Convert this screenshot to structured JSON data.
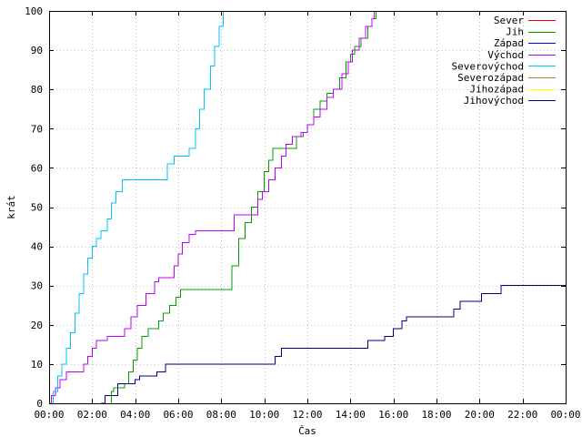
{
  "chart_data": {
    "type": "line",
    "title": "",
    "xlabel": "Čas",
    "ylabel": "krát",
    "xlim": [
      0,
      24
    ],
    "ylim": [
      0,
      100
    ],
    "grid": true,
    "legend_position": "top-right",
    "x_tick_labels": [
      "00:00",
      "02:00",
      "04:00",
      "06:00",
      "08:00",
      "10:00",
      "12:00",
      "14:00",
      "16:00",
      "18:00",
      "20:00",
      "22:00",
      "00:00"
    ],
    "y_tick_labels": [
      "0",
      "10",
      "20",
      "30",
      "40",
      "50",
      "60",
      "70",
      "80",
      "90",
      "100"
    ],
    "x_ticks": [
      0,
      2,
      4,
      6,
      8,
      10,
      12,
      14,
      16,
      18,
      20,
      22,
      24
    ],
    "y_ticks": [
      0,
      10,
      20,
      30,
      40,
      50,
      60,
      70,
      80,
      90,
      100
    ],
    "series": [
      {
        "name": "Sever",
        "color": "#ff0000",
        "points": []
      },
      {
        "name": "Jih",
        "color": "#00a000",
        "points": [
          [
            2.9,
            0
          ],
          [
            2.9,
            3
          ],
          [
            3.0,
            4
          ],
          [
            3.5,
            5
          ],
          [
            3.7,
            8
          ],
          [
            3.9,
            11
          ],
          [
            4.1,
            14
          ],
          [
            4.3,
            17
          ],
          [
            4.6,
            19
          ],
          [
            5.1,
            21
          ],
          [
            5.3,
            23
          ],
          [
            5.6,
            25
          ],
          [
            5.9,
            27
          ],
          [
            6.1,
            29
          ],
          [
            8.3,
            29
          ],
          [
            8.5,
            35
          ],
          [
            8.8,
            42
          ],
          [
            9.1,
            46
          ],
          [
            9.4,
            50
          ],
          [
            9.7,
            54
          ],
          [
            10.0,
            59
          ],
          [
            10.2,
            62
          ],
          [
            10.4,
            65
          ],
          [
            11.2,
            65
          ],
          [
            11.5,
            68
          ],
          [
            11.8,
            69
          ],
          [
            12.0,
            71
          ],
          [
            12.3,
            75
          ],
          [
            12.6,
            77
          ],
          [
            12.9,
            79
          ],
          [
            13.2,
            80
          ],
          [
            13.5,
            83
          ],
          [
            13.8,
            87
          ],
          [
            14.0,
            89
          ],
          [
            14.2,
            91
          ],
          [
            14.5,
            93
          ],
          [
            14.8,
            96
          ],
          [
            15.0,
            98
          ],
          [
            15.2,
            100
          ]
        ]
      },
      {
        "name": "Západ",
        "color": "#0000ff",
        "points": []
      },
      {
        "name": "Východ",
        "color": "#c000ff",
        "points": [
          [
            0.0,
            0
          ],
          [
            0.1,
            2
          ],
          [
            0.3,
            4
          ],
          [
            0.5,
            6
          ],
          [
            0.8,
            8
          ],
          [
            1.5,
            8
          ],
          [
            1.6,
            10
          ],
          [
            1.8,
            12
          ],
          [
            2.0,
            14
          ],
          [
            2.2,
            16
          ],
          [
            2.7,
            17
          ],
          [
            3.3,
            17
          ],
          [
            3.5,
            19
          ],
          [
            3.8,
            22
          ],
          [
            4.1,
            25
          ],
          [
            4.5,
            28
          ],
          [
            4.9,
            31
          ],
          [
            5.1,
            32
          ],
          [
            5.7,
            32
          ],
          [
            5.8,
            35
          ],
          [
            6.0,
            38
          ],
          [
            6.2,
            41
          ],
          [
            6.5,
            43
          ],
          [
            6.8,
            44
          ],
          [
            8.5,
            44
          ],
          [
            8.6,
            48
          ],
          [
            9.5,
            48
          ],
          [
            9.7,
            52
          ],
          [
            9.9,
            54
          ],
          [
            10.2,
            57
          ],
          [
            10.5,
            60
          ],
          [
            10.8,
            63
          ],
          [
            11.0,
            66
          ],
          [
            11.3,
            68
          ],
          [
            11.7,
            69
          ],
          [
            12.0,
            71
          ],
          [
            12.3,
            73
          ],
          [
            12.6,
            75
          ],
          [
            12.9,
            78
          ],
          [
            13.2,
            80
          ],
          [
            13.6,
            84
          ],
          [
            13.9,
            87
          ],
          [
            14.1,
            90
          ],
          [
            14.4,
            93
          ],
          [
            14.7,
            96
          ],
          [
            15.0,
            98
          ],
          [
            15.1,
            100
          ]
        ]
      },
      {
        "name": "Severovýchod",
        "color": "#00c0ff",
        "points": [
          [
            0.0,
            0
          ],
          [
            0.2,
            3
          ],
          [
            0.4,
            7
          ],
          [
            0.6,
            10
          ],
          [
            0.8,
            14
          ],
          [
            1.0,
            18
          ],
          [
            1.2,
            23
          ],
          [
            1.4,
            28
          ],
          [
            1.6,
            33
          ],
          [
            1.8,
            37
          ],
          [
            2.0,
            40
          ],
          [
            2.2,
            42
          ],
          [
            2.4,
            44
          ],
          [
            2.7,
            47
          ],
          [
            2.9,
            51
          ],
          [
            3.1,
            54
          ],
          [
            3.4,
            57
          ],
          [
            5.3,
            57
          ],
          [
            5.5,
            61
          ],
          [
            5.8,
            63
          ],
          [
            6.4,
            63
          ],
          [
            6.5,
            65
          ],
          [
            6.8,
            70
          ],
          [
            7.0,
            75
          ],
          [
            7.2,
            80
          ],
          [
            7.5,
            86
          ],
          [
            7.7,
            91
          ],
          [
            7.9,
            96
          ],
          [
            8.1,
            100
          ]
        ]
      },
      {
        "name": "Severozápad",
        "color": "#c08040",
        "points": []
      },
      {
        "name": "Jihozápad",
        "color": "#ffff00",
        "points": []
      },
      {
        "name": "Jihovýchod",
        "color": "#000080",
        "points": [
          [
            2.4,
            0
          ],
          [
            2.6,
            2
          ],
          [
            3.2,
            5
          ],
          [
            4.0,
            6
          ],
          [
            4.2,
            7
          ],
          [
            5.0,
            8
          ],
          [
            5.4,
            10
          ],
          [
            10.3,
            10
          ],
          [
            10.5,
            12
          ],
          [
            10.8,
            14
          ],
          [
            14.2,
            14
          ],
          [
            14.8,
            16
          ],
          [
            15.6,
            17
          ],
          [
            16.0,
            19
          ],
          [
            16.4,
            21
          ],
          [
            16.6,
            22
          ],
          [
            18.6,
            22
          ],
          [
            18.8,
            24
          ],
          [
            19.1,
            26
          ],
          [
            20.1,
            28
          ],
          [
            21.0,
            30
          ],
          [
            24.0,
            30
          ]
        ]
      }
    ]
  }
}
